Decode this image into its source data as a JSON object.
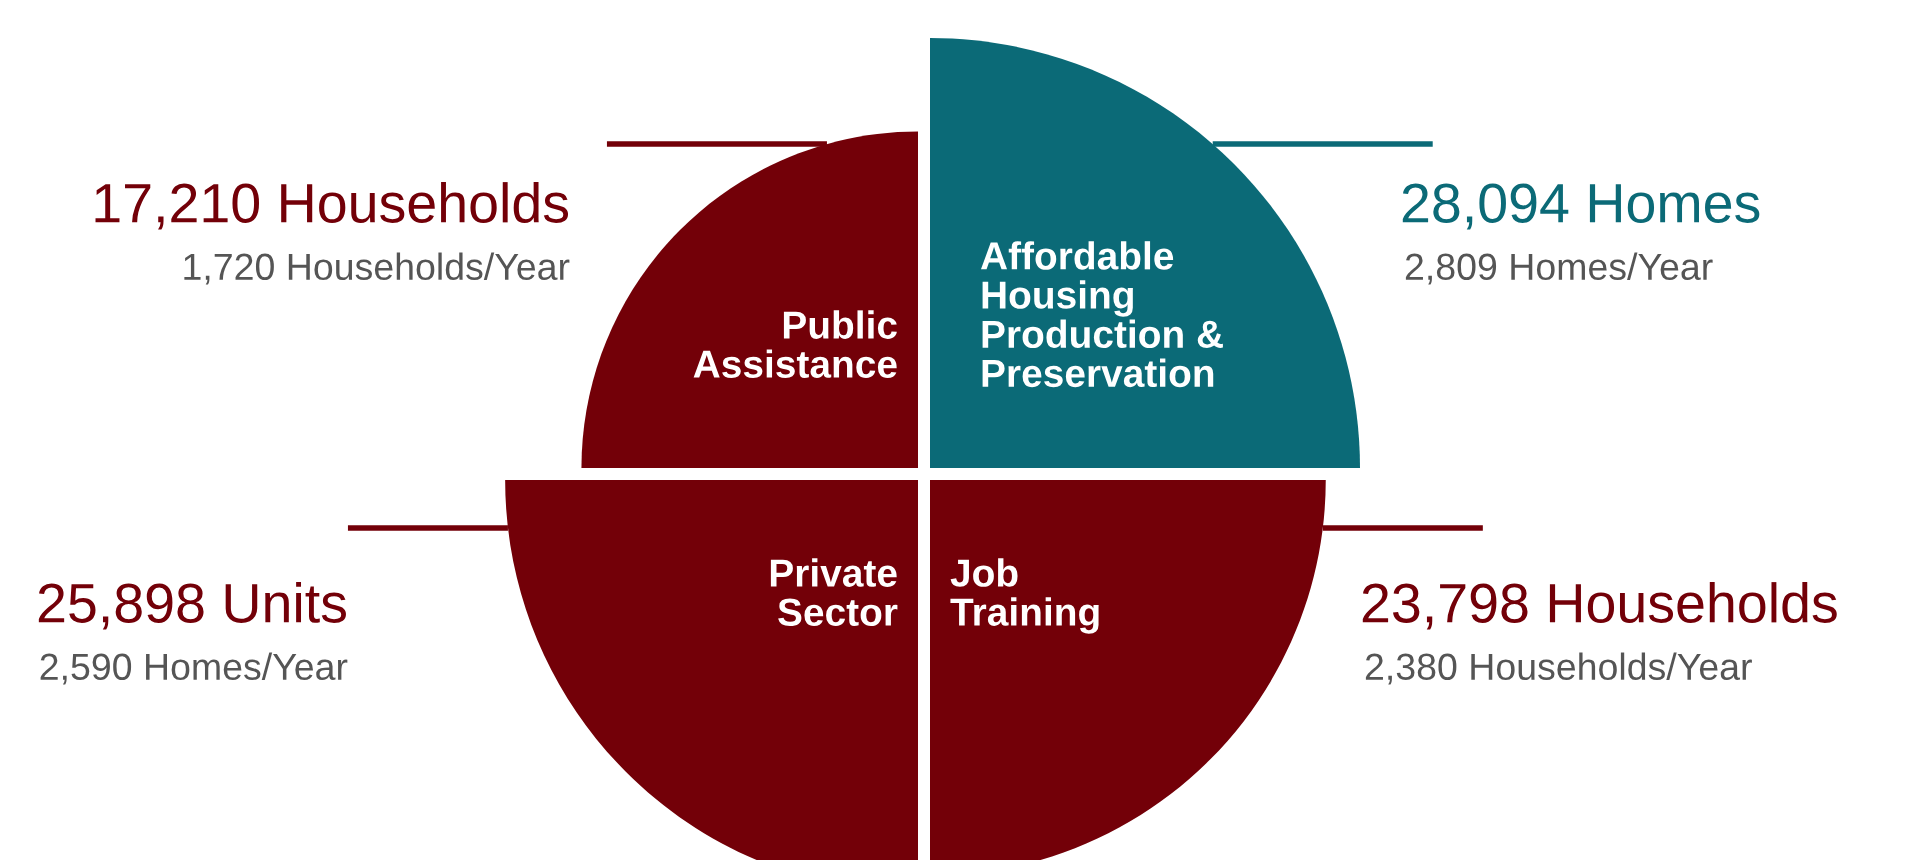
{
  "chart_data": {
    "type": "other",
    "categories": [
      "Public\nAssistance",
      "Affordable\nHousing\nProduction &\nPreservation",
      "Private\nSector",
      "Job\nTraining"
    ],
    "values": [
      17210,
      28094,
      25898,
      23798
    ],
    "colors": [
      "#730008",
      "#0b6a77",
      "#730008",
      "#730008"
    ],
    "value_labels": [
      "17,210 Households",
      "28,094 Homes",
      "25,898 Units",
      "23,798 Households"
    ],
    "annotations": [
      "1,720 Households/Year",
      "2,809 Homes/Year",
      "2,590 Homes/Year",
      "2,380 Households/Year"
    ]
  }
}
